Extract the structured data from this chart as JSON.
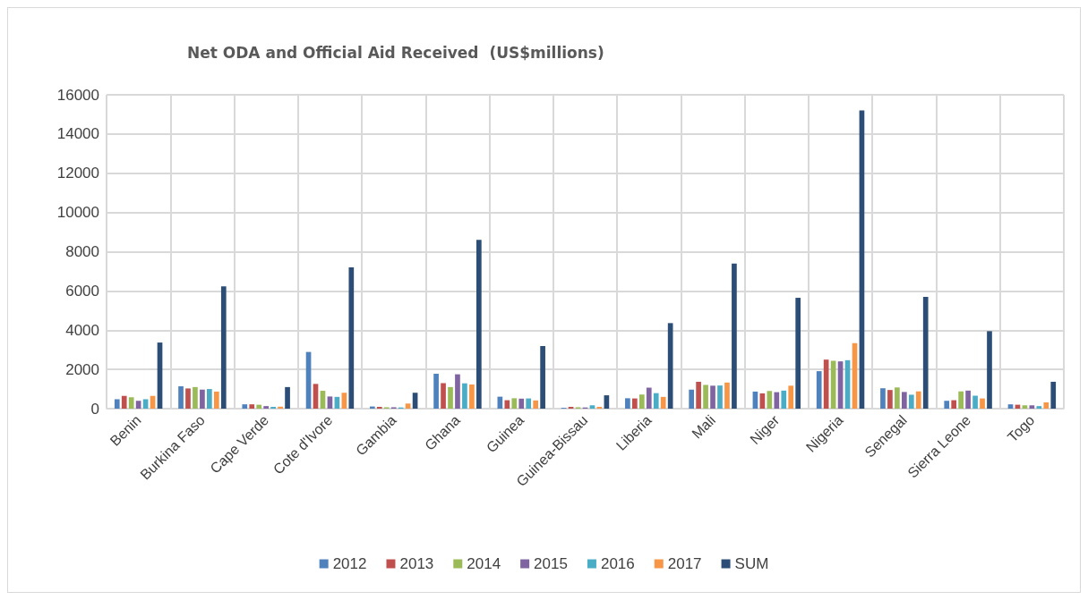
{
  "chart_data": {
    "type": "bar",
    "title": "Net ODA and Official Aid Received  (US$millions)",
    "categories": [
      "Benin",
      "Burkina Faso",
      "Cape Verde",
      "Cote d'Ivore",
      "Gambia",
      "Ghana",
      "Guinea",
      "Guinea-Bissau",
      "Liberia",
      "Mali",
      "Niger",
      "Nigeria",
      "Senegal",
      "Sierra Leone",
      "Togo"
    ],
    "series": [
      {
        "name": "2012",
        "color": "#4f81bd",
        "values": [
          480,
          1140,
          220,
          2890,
          110,
          1780,
          610,
          40,
          530,
          970,
          870,
          1910,
          1040,
          400,
          220
        ]
      },
      {
        "name": "2013",
        "color": "#c0504d",
        "values": [
          650,
          1030,
          220,
          1260,
          90,
          1300,
          430,
          90,
          520,
          1370,
          780,
          2500,
          950,
          430,
          200
        ]
      },
      {
        "name": "2014",
        "color": "#9bbb59",
        "values": [
          580,
          1100,
          200,
          910,
          70,
          1100,
          530,
          70,
          720,
          1210,
          900,
          2440,
          1080,
          880,
          170
        ]
      },
      {
        "name": "2015",
        "color": "#8064a2",
        "values": [
          400,
          970,
          130,
          620,
          70,
          1750,
          510,
          60,
          1070,
          1170,
          840,
          2410,
          850,
          920,
          170
        ]
      },
      {
        "name": "2016",
        "color": "#4bacc6",
        "values": [
          480,
          1000,
          90,
          600,
          60,
          1290,
          520,
          170,
          790,
          1180,
          920,
          2470,
          710,
          660,
          130
        ]
      },
      {
        "name": "2017",
        "color": "#f79646",
        "values": [
          650,
          870,
          100,
          810,
          260,
          1230,
          420,
          90,
          600,
          1330,
          1170,
          3340,
          880,
          520,
          320
        ]
      },
      {
        "name": "SUM",
        "color": "#2c4d75",
        "values": [
          3370,
          6230,
          1100,
          7200,
          810,
          8600,
          3190,
          680,
          4360,
          7400,
          5650,
          15200,
          5700,
          3950,
          1370
        ]
      }
    ],
    "ylim": [
      0,
      16000
    ],
    "yticks": [
      0,
      2000,
      4000,
      6000,
      8000,
      10000,
      12000,
      14000,
      16000
    ],
    "grid": true,
    "legend": "bottom"
  }
}
